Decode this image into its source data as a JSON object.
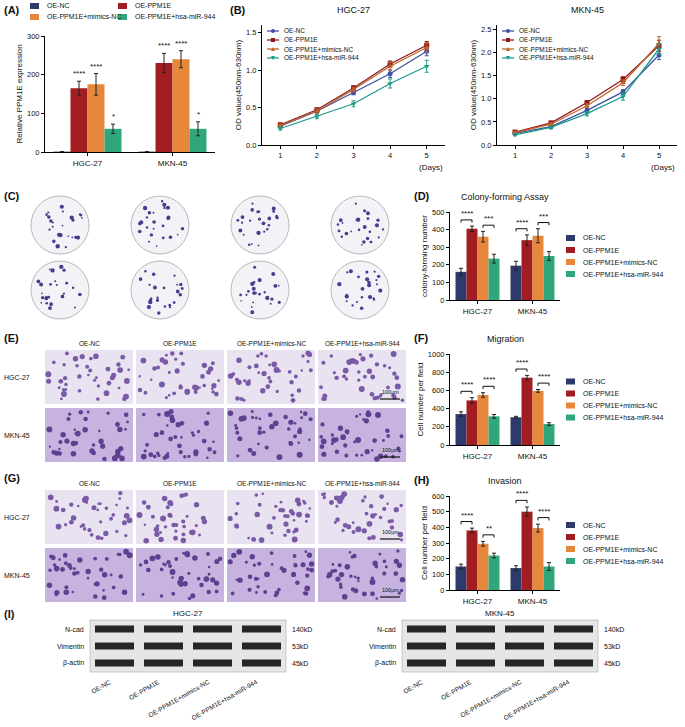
{
  "chart_data": [
    {
      "label": "(A)",
      "type": "bar",
      "categories": [
        "HGC-27",
        "MKN-45"
      ],
      "y_label": "Relative PPM1E expression",
      "ylim": [
        0,
        300
      ],
      "yticks": [
        0,
        100,
        200,
        300
      ],
      "grid": false,
      "legend": "top",
      "series": [
        {
          "name": "OE-NC",
          "color": "#2E3A6B",
          "values": [
            1,
            1
          ],
          "errors": [
            0,
            0
          ]
        },
        {
          "name": "OE-PPM1E",
          "color": "#A11D21",
          "values": [
            165,
            230
          ],
          "errors": [
            18,
            25
          ]
        },
        {
          "name": "OE-PPM1E+mimics-NC",
          "color": "#E5883C",
          "values": [
            175,
            240
          ],
          "errors": [
            28,
            22
          ]
        },
        {
          "name": "OE-PPM1E+hsa-miR-944",
          "color": "#2FA77A",
          "values": [
            60,
            60
          ],
          "errors": [
            12,
            18
          ]
        }
      ],
      "significance": [
        {
          "category": "HGC-27",
          "series": "OE-PPM1E",
          "label": "****"
        },
        {
          "category": "HGC-27",
          "series": "OE-PPM1E+mimics-NC",
          "label": "****"
        },
        {
          "category": "HGC-27",
          "series": "OE-PPM1E+hsa-miR-944",
          "label": "*"
        },
        {
          "category": "MKN-45",
          "series": "OE-PPM1E",
          "label": "****"
        },
        {
          "category": "MKN-45",
          "series": "OE-PPM1E+mimics-NC",
          "label": "****"
        },
        {
          "category": "MKN-45",
          "series": "OE-PPM1E+hsa-miR-944",
          "label": "*"
        }
      ]
    },
    {
      "label": "(B)",
      "type": "line",
      "title": "HGC-27",
      "x": [
        1,
        2,
        3,
        4,
        5
      ],
      "x_label": "(Days)",
      "y_label": "OD value(450nm-630nm)",
      "xlim": [
        0.5,
        5.5
      ],
      "xticks": [
        1,
        2,
        3,
        4,
        5
      ],
      "ylim": [
        0,
        1.6
      ],
      "yticks": [
        {
          "value": 0,
          "label": "0.0"
        },
        0.5,
        {
          "value": 1,
          "label": "1.0"
        },
        1.5
      ],
      "grid": false,
      "legend": "upper left",
      "series": [
        {
          "name": "OE-NC",
          "color": "#3F51A3",
          "marker": "circle",
          "values": [
            0.25,
            0.45,
            0.7,
            0.95,
            1.25
          ],
          "errors": [
            0.02,
            0.02,
            0.03,
            0.05,
            0.06
          ]
        },
        {
          "name": "OE-PPM1E",
          "color": "#8E1B1B",
          "marker": "square",
          "values": [
            0.27,
            0.47,
            0.76,
            1.08,
            1.33
          ],
          "errors": [
            0.02,
            0.02,
            0.03,
            0.04,
            0.05
          ]
        },
        {
          "name": "OE-PPM1E+mimics-NC",
          "color": "#C0622A",
          "marker": "triangle-up",
          "values": [
            0.26,
            0.45,
            0.74,
            1.05,
            1.3
          ],
          "errors": [
            0.02,
            0.03,
            0.03,
            0.05,
            0.06
          ]
        },
        {
          "name": "OE-PPM1E+hsa-miR-944",
          "color": "#1D9A8A",
          "marker": "triangle-down",
          "values": [
            0.22,
            0.38,
            0.55,
            0.82,
            1.05
          ],
          "errors": [
            0.02,
            0.03,
            0.04,
            0.06,
            0.08
          ]
        }
      ]
    },
    {
      "type": "line",
      "title": "MKN-45",
      "x": [
        1,
        2,
        3,
        4,
        5
      ],
      "x_label": "(Days)",
      "y_label": "OD value(450nm-630nm)",
      "xlim": [
        0.5,
        5.5
      ],
      "xticks": [
        1,
        2,
        3,
        4,
        5
      ],
      "ylim": [
        0,
        2.6
      ],
      "yticks": [
        {
          "value": 0,
          "label": "0.0"
        },
        0.5,
        {
          "value": 1,
          "label": "1.0"
        },
        1.5,
        {
          "value": 2,
          "label": "2.0"
        },
        2.5
      ],
      "grid": false,
      "legend": "upper left",
      "series": [
        {
          "name": "OE-NC",
          "color": "#3F51A3",
          "marker": "circle",
          "values": [
            0.25,
            0.4,
            0.75,
            1.15,
            1.95
          ],
          "errors": [
            0.02,
            0.03,
            0.04,
            0.05,
            0.1
          ]
        },
        {
          "name": "OE-PPM1E",
          "color": "#8E1B1B",
          "marker": "square",
          "values": [
            0.28,
            0.48,
            0.92,
            1.42,
            2.15
          ],
          "errors": [
            0.02,
            0.03,
            0.04,
            0.06,
            0.12
          ]
        },
        {
          "name": "OE-PPM1E+mimics-NC",
          "color": "#C0622A",
          "marker": "triangle-up",
          "values": [
            0.27,
            0.45,
            0.85,
            1.35,
            2.2
          ],
          "errors": [
            0.02,
            0.03,
            0.04,
            0.06,
            0.15
          ]
        },
        {
          "name": "OE-PPM1E+hsa-miR-944",
          "color": "#1D9A8A",
          "marker": "triangle-down",
          "values": [
            0.22,
            0.38,
            0.68,
            1.05,
            2.08
          ],
          "errors": [
            0.02,
            0.03,
            0.05,
            0.08,
            0.12
          ]
        }
      ]
    },
    {
      "label": "(D)",
      "type": "bar",
      "title": "Colony-forming Assay",
      "categories": [
        "HGC-27",
        "MKN-45"
      ],
      "y_label": "colony-forming number",
      "ylim": [
        0,
        500
      ],
      "yticks": [
        0,
        100,
        200,
        300,
        400,
        500
      ],
      "grid": false,
      "legend": "right",
      "series": [
        {
          "name": "OE-NC",
          "color": "#2E3A6B",
          "values": [
            160,
            195
          ],
          "errors": [
            20,
            25
          ]
        },
        {
          "name": "OE-PPM1E",
          "color": "#A11D21",
          "values": [
            405,
            340
          ],
          "errors": [
            15,
            30
          ]
        },
        {
          "name": "OE-PPM1E+mimics-NC",
          "color": "#E5883C",
          "values": [
            360,
            365
          ],
          "errors": [
            30,
            40
          ]
        },
        {
          "name": "OE-PPM1E+hsa-miR-944",
          "color": "#2FA77A",
          "values": [
            235,
            250
          ],
          "errors": [
            25,
            25
          ]
        }
      ],
      "comparisons": [
        {
          "category": "HGC-27",
          "series": [
            "OE-NC",
            "OE-PPM1E"
          ],
          "label": "****"
        },
        {
          "category": "HGC-27",
          "series": [
            "OE-PPM1E+mimics-NC",
            "OE-PPM1E+hsa-miR-944"
          ],
          "label": "***"
        },
        {
          "category": "MKN-45",
          "series": [
            "OE-NC",
            "OE-PPM1E"
          ],
          "label": "****"
        },
        {
          "category": "MKN-45",
          "series": [
            "OE-PPM1E+mimics-NC",
            "OE-PPM1E+hsa-miR-944"
          ],
          "label": "***"
        }
      ]
    },
    {
      "label": "(F)",
      "type": "bar",
      "title": "Migration",
      "categories": [
        "HGC-27",
        "MKN-45"
      ],
      "y_label": "Cell number per field",
      "ylim": [
        0,
        1000
      ],
      "yticks": [
        0,
        200,
        400,
        600,
        800,
        1000
      ],
      "grid": false,
      "legend": "right",
      "series": [
        {
          "name": "OE-NC",
          "color": "#2E3A6B",
          "values": [
            340,
            305
          ],
          "errors": [
            25,
            10
          ]
        },
        {
          "name": "OE-PPM1E",
          "color": "#A11D21",
          "values": [
            490,
            740
          ],
          "errors": [
            30,
            25
          ]
        },
        {
          "name": "OE-PPM1E+mimics-NC",
          "color": "#E5883C",
          "values": [
            550,
            595
          ],
          "errors": [
            25,
            15
          ]
        },
        {
          "name": "OE-PPM1E+hsa-miR-944",
          "color": "#2FA77A",
          "values": [
            315,
            230
          ],
          "errors": [
            20,
            15
          ]
        }
      ],
      "comparisons": [
        {
          "category": "HGC-27",
          "series": [
            "OE-NC",
            "OE-PPM1E"
          ],
          "label": "****"
        },
        {
          "category": "HGC-27",
          "series": [
            "OE-PPM1E+mimics-NC",
            "OE-PPM1E+hsa-miR-944"
          ],
          "label": "****"
        },
        {
          "category": "MKN-45",
          "series": [
            "OE-NC",
            "OE-PPM1E"
          ],
          "label": "****"
        },
        {
          "category": "MKN-45",
          "series": [
            "OE-PPM1E+mimics-NC",
            "OE-PPM1E+hsa-miR-944"
          ],
          "label": "****"
        }
      ]
    },
    {
      "label": "(H)",
      "type": "bar",
      "title": "Invasion",
      "categories": [
        "HGC-27",
        "MKN-45"
      ],
      "y_label": "Cell number per field",
      "ylim": [
        0,
        600
      ],
      "yticks": [
        0,
        100,
        200,
        300,
        400,
        500,
        600
      ],
      "grid": false,
      "legend": "right",
      "series": [
        {
          "name": "OE-NC",
          "color": "#2E3A6B",
          "values": [
            150,
            140
          ],
          "errors": [
            15,
            15
          ]
        },
        {
          "name": "OE-PPM1E",
          "color": "#A11D21",
          "values": [
            380,
            500
          ],
          "errors": [
            15,
            30
          ]
        },
        {
          "name": "OE-PPM1E+mimics-NC",
          "color": "#E5883C",
          "values": [
            295,
            395
          ],
          "errors": [
            15,
            25
          ]
        },
        {
          "name": "OE-PPM1E+hsa-miR-944",
          "color": "#2FA77A",
          "values": [
            220,
            150
          ],
          "errors": [
            15,
            25
          ]
        }
      ],
      "comparisons": [
        {
          "category": "HGC-27",
          "series": [
            "OE-NC",
            "OE-PPM1E"
          ],
          "label": "****"
        },
        {
          "category": "HGC-27",
          "series": [
            "OE-PPM1E+mimics-NC",
            "OE-PPM1E+hsa-miR-944"
          ],
          "label": "**"
        },
        {
          "category": "MKN-45",
          "series": [
            "OE-NC",
            "OE-PPM1E"
          ],
          "label": "****"
        },
        {
          "category": "MKN-45",
          "series": [
            "OE-PPM1E+mimics-NC",
            "OE-PPM1E+hsa-miR-944"
          ],
          "label": "****"
        }
      ]
    }
  ],
  "colony_assay": {
    "label": "(C)"
  },
  "migration_images": {
    "label": "(E)",
    "columns": [
      "OE-NC",
      "OE-PPM1E",
      "OE-PPM1E+mimics-NC",
      "OE-PPM1E+hsa-miR-944"
    ],
    "rows": [
      "HGC-27",
      "MKN-45"
    ],
    "scale_bar": "100μm"
  },
  "invasion_images": {
    "label": "(G)",
    "columns": [
      "OE-NC",
      "OE-PPM1E",
      "OE-PPM1E+mimics-NC",
      "OE-PPM1E+hsa-miR-944"
    ],
    "rows": [
      "HGC-27",
      "MKN-45"
    ],
    "scale_bar": "100μm"
  },
  "western_blot": {
    "label": "(I)",
    "blots": [
      "HGC-27",
      "MKN-45"
    ],
    "proteins": [
      {
        "name": "N-cad",
        "size": "140kD"
      },
      {
        "name": "Vimentin",
        "size": "53kD"
      },
      {
        "name": "β-actin",
        "size": "45kD"
      }
    ],
    "lanes": [
      "OE-NC",
      "OE-PPM1E",
      "OE-PPM1E+mimics-NC",
      "OE-PPM1E+hsa-miR-944"
    ]
  }
}
